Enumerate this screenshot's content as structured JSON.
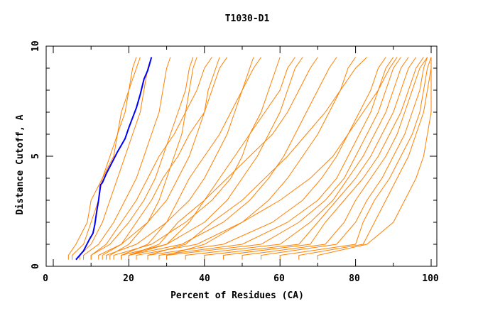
{
  "chart_data": {
    "type": "line",
    "title": "T1030-D1",
    "xlabel": "Percent of Residues (CA)",
    "ylabel": "Distance Cutoff, A",
    "xlim": [
      0,
      100
    ],
    "ylim": [
      0,
      10
    ],
    "x_ticks": [
      "0",
      "20",
      "40",
      "60",
      "80",
      "100"
    ],
    "y_ticks": [
      "0",
      "5",
      "10"
    ],
    "grid": false,
    "colors": {
      "highlight": "#0000ff",
      "others": "#ff8000"
    },
    "cutoffs": [
      0.5,
      1,
      2,
      3,
      4,
      5,
      6,
      7,
      8,
      9,
      9.5
    ],
    "highlight_series": {
      "points": [
        [
          6,
          0.3
        ],
        [
          8,
          0.7
        ],
        [
          9.5,
          1.2
        ],
        [
          10.5,
          1.5
        ],
        [
          11,
          1.9
        ],
        [
          11.5,
          2.5
        ],
        [
          12,
          3
        ],
        [
          12.5,
          3.7
        ],
        [
          13,
          3.8
        ],
        [
          14,
          4.2
        ],
        [
          15.5,
          4.7
        ],
        [
          17,
          5.2
        ],
        [
          18,
          5.5
        ],
        [
          19,
          5.8
        ],
        [
          20,
          6.3
        ],
        [
          22,
          7.2
        ],
        [
          23,
          7.8
        ],
        [
          24,
          8.5
        ],
        [
          25,
          8.9
        ],
        [
          26,
          9.5
        ]
      ]
    },
    "series": [
      {
        "x": [
          4,
          6,
          9,
          10,
          13,
          16,
          17,
          18,
          20,
          21,
          22
        ]
      },
      {
        "x": [
          5,
          8,
          10,
          12,
          13,
          15,
          17,
          19,
          20,
          22,
          23
        ]
      },
      {
        "x": [
          7,
          10,
          13,
          15,
          17,
          19,
          21,
          23,
          24,
          25,
          26
        ]
      },
      {
        "x": [
          8,
          12,
          16,
          19,
          22,
          24,
          26,
          28,
          29,
          30,
          31
        ]
      },
      {
        "x": [
          10,
          15,
          20,
          24,
          27,
          29,
          31,
          33,
          35,
          36,
          37
        ]
      },
      {
        "x": [
          12,
          18,
          25,
          30,
          33,
          36,
          38,
          40,
          41,
          43,
          44
        ]
      },
      {
        "x": [
          14,
          22,
          30,
          36,
          40,
          43,
          46,
          48,
          50,
          52,
          53
        ]
      },
      {
        "x": [
          16,
          26,
          35,
          42,
          47,
          50,
          52,
          55,
          57,
          59,
          60
        ]
      },
      {
        "x": [
          18,
          30,
          40,
          46,
          50,
          54,
          57,
          60,
          62,
          64,
          66
        ]
      },
      {
        "x": [
          20,
          34,
          45,
          52,
          57,
          61,
          64,
          67,
          70,
          73,
          75
        ]
      },
      {
        "x": [
          22,
          38,
          50,
          57,
          62,
          66,
          70,
          73,
          76,
          78,
          80
        ]
      },
      {
        "x": [
          25,
          45,
          58,
          66,
          71,
          75,
          78,
          81,
          84,
          86,
          88
        ]
      },
      {
        "x": [
          28,
          50,
          62,
          70,
          75,
          78,
          81,
          84,
          86,
          88,
          90
        ]
      },
      {
        "x": [
          30,
          55,
          65,
          72,
          77,
          80,
          83,
          86,
          88,
          90,
          92
        ]
      },
      {
        "x": [
          35,
          60,
          68,
          74,
          78,
          82,
          85,
          88,
          90,
          92,
          94
        ]
      },
      {
        "x": [
          40,
          65,
          70,
          75,
          80,
          84,
          87,
          90,
          92,
          94,
          96
        ]
      },
      {
        "x": [
          45,
          68,
          72,
          77,
          82,
          86,
          89,
          92,
          94,
          96,
          98
        ]
      },
      {
        "x": [
          50,
          72,
          77,
          80,
          84,
          88,
          91,
          93,
          95,
          97,
          99
        ]
      },
      {
        "x": [
          55,
          75,
          80,
          83,
          87,
          90,
          93,
          95,
          97,
          98,
          99
        ]
      },
      {
        "x": [
          60,
          80,
          82,
          85,
          89,
          92,
          95,
          97,
          98,
          99,
          100
        ]
      },
      {
        "x": [
          65,
          82,
          85,
          88,
          91,
          94,
          96,
          98,
          99,
          100,
          100
        ]
      },
      {
        "x": [
          70,
          83,
          90,
          93,
          96,
          98,
          99,
          100,
          100,
          100,
          100
        ]
      },
      {
        "x": [
          15,
          20,
          25,
          28,
          30,
          32,
          34,
          35,
          36,
          37,
          38
        ]
      },
      {
        "x": [
          18,
          25,
          30,
          33,
          36,
          40,
          44,
          47,
          50,
          53,
          55
        ]
      },
      {
        "x": [
          20,
          28,
          33,
          40,
          46,
          52,
          58,
          62,
          65,
          68,
          70
        ]
      },
      {
        "x": [
          25,
          35,
          42,
          50,
          56,
          62,
          67,
          72,
          76,
          80,
          83
        ]
      },
      {
        "x": [
          30,
          40,
          50,
          60,
          68,
          74,
          78,
          82,
          86,
          89,
          91
        ]
      },
      {
        "x": [
          13,
          18,
          22,
          26,
          29,
          33,
          36,
          40,
          42,
          44,
          46
        ]
      },
      {
        "x": [
          20,
          30,
          36,
          40,
          44,
          48,
          52,
          56,
          60,
          62,
          64
        ]
      },
      {
        "x": [
          10,
          14,
          18,
          22,
          25,
          28,
          32,
          35,
          38,
          40,
          42
        ]
      }
    ]
  }
}
